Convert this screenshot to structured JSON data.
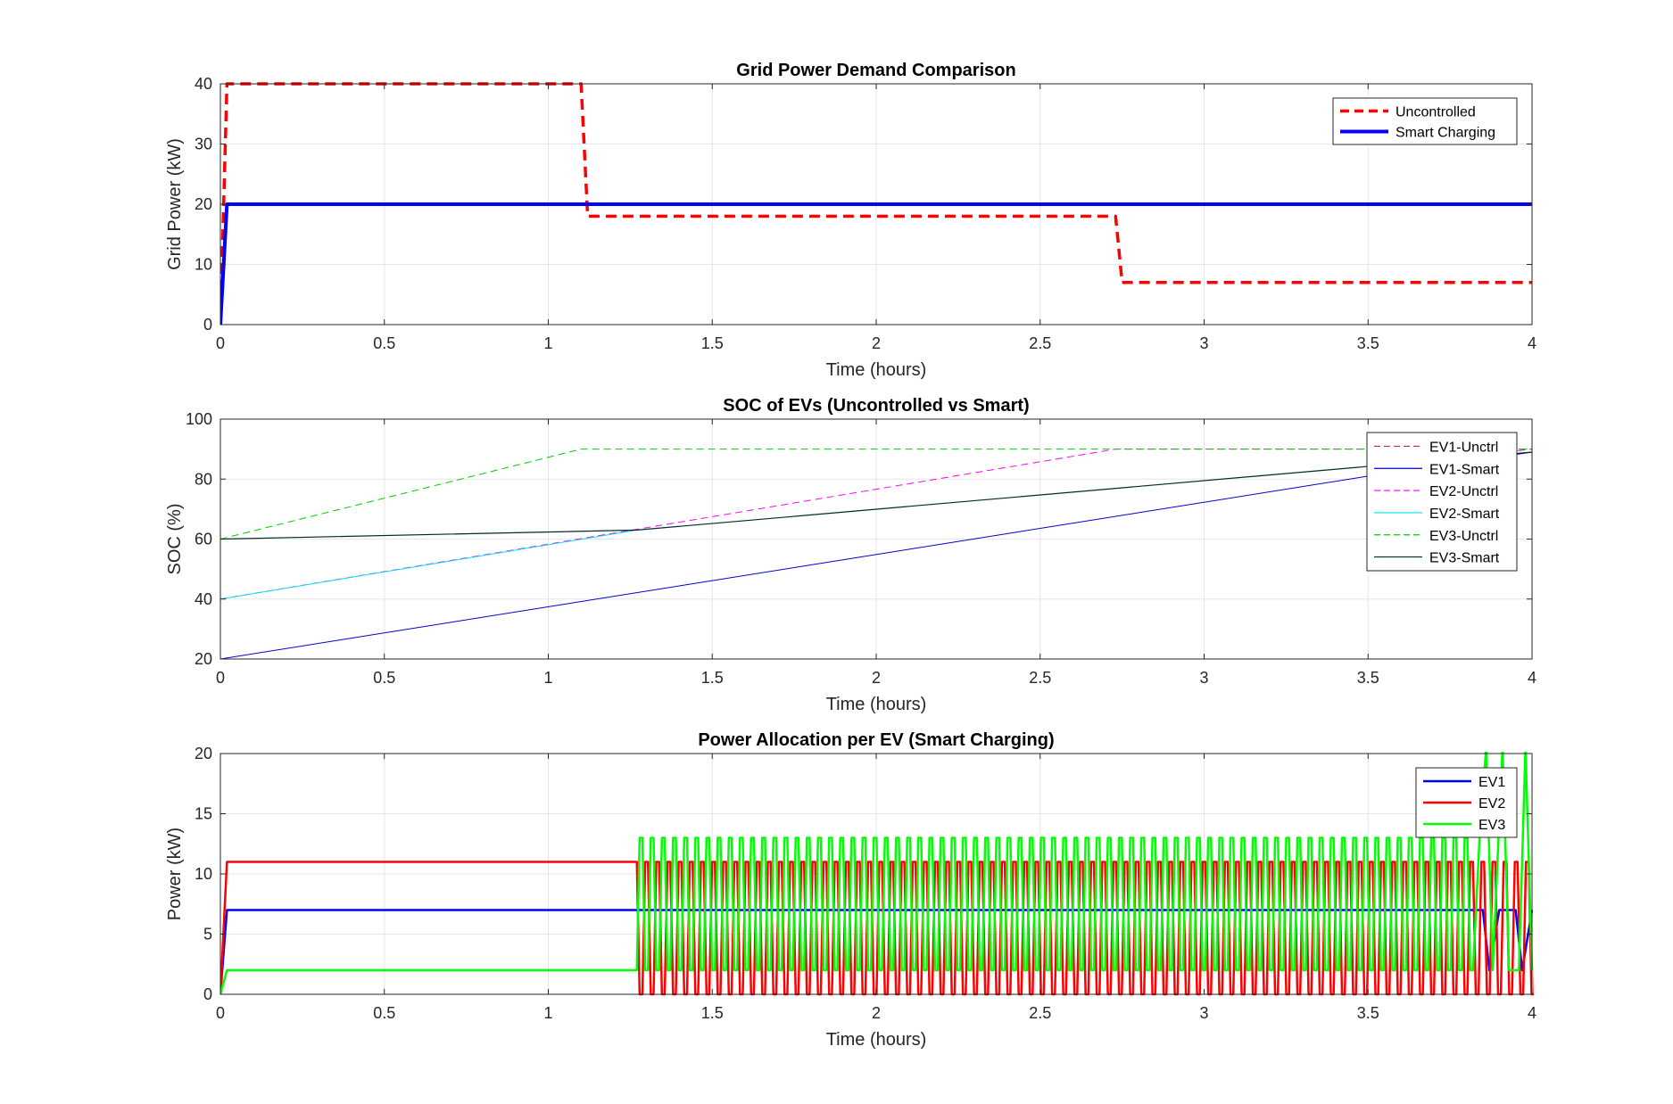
{
  "chart_data": [
    {
      "type": "line",
      "title": "Grid Power Demand Comparison",
      "xlabel": "Time (hours)",
      "ylabel": "Grid Power (kW)",
      "xlim": [
        0,
        4
      ],
      "ylim": [
        0,
        40
      ],
      "xticks": [
        0,
        0.5,
        1,
        1.5,
        2,
        2.5,
        3,
        3.5,
        4
      ],
      "yticks": [
        0,
        10,
        20,
        30,
        40
      ],
      "grid": true,
      "legend": "top-right",
      "series": [
        {
          "name": "Uncontrolled",
          "color": "#ff0000",
          "style": "dashed",
          "width": 3.5,
          "points": [
            [
              0,
              0
            ],
            [
              0.02,
              40
            ],
            [
              1.1,
              40
            ],
            [
              1.12,
              18
            ],
            [
              2.73,
              18
            ],
            [
              2.75,
              7
            ],
            [
              4,
              7
            ]
          ]
        },
        {
          "name": "Smart Charging",
          "color": "#0000ff",
          "style": "solid",
          "width": 4,
          "points": [
            [
              0,
              0
            ],
            [
              0.02,
              20
            ],
            [
              4,
              20
            ]
          ]
        }
      ]
    },
    {
      "type": "line",
      "title": "SOC of EVs (Uncontrolled vs Smart)",
      "xlabel": "Time (hours)",
      "ylabel": "SOC (%)",
      "xlim": [
        0,
        4
      ],
      "ylim": [
        20,
        100
      ],
      "xticks": [
        0,
        0.5,
        1,
        1.5,
        2,
        2.5,
        3,
        3.5,
        4
      ],
      "yticks": [
        20,
        40,
        60,
        80,
        100
      ],
      "grid": true,
      "legend": "top-right",
      "series": [
        {
          "name": "EV1-Unctrl",
          "color": "#b03060",
          "style": "dashed",
          "width": 1,
          "points": [
            [
              3.5,
              84
            ],
            [
              4,
              90
            ]
          ]
        },
        {
          "name": "EV1-Smart",
          "color": "#0000cc",
          "style": "solid",
          "width": 1,
          "points": [
            [
              0,
              20
            ],
            [
              3.5,
              81
            ],
            [
              4,
              89
            ]
          ]
        },
        {
          "name": "EV2-Unctrl",
          "color": "#ff00ff",
          "style": "dashed",
          "width": 1,
          "points": [
            [
              0,
              40
            ],
            [
              2.73,
              90
            ],
            [
              4,
              90
            ]
          ]
        },
        {
          "name": "EV2-Smart",
          "color": "#00e5e5",
          "style": "solid",
          "width": 1,
          "points": [
            [
              0,
              40
            ],
            [
              1.27,
              63
            ]
          ]
        },
        {
          "name": "EV3-Unctrl",
          "color": "#00cc00",
          "style": "dashed",
          "width": 1,
          "points": [
            [
              0,
              60
            ],
            [
              1.1,
              90
            ],
            [
              4,
              90
            ]
          ]
        },
        {
          "name": "EV3-Smart",
          "color": "#002b2b",
          "style": "solid",
          "width": 1.2,
          "points": [
            [
              0,
              60
            ],
            [
              1.27,
              63
            ],
            [
              4,
              89
            ]
          ]
        }
      ]
    },
    {
      "type": "line",
      "title": "Power Allocation per EV (Smart Charging)",
      "xlabel": "Time (hours)",
      "ylabel": "Power (kW)",
      "xlim": [
        0,
        4
      ],
      "ylim": [
        0,
        20
      ],
      "xticks": [
        0,
        0.5,
        1,
        1.5,
        2,
        2.5,
        3,
        3.5,
        4
      ],
      "yticks": [
        0,
        5,
        10,
        15,
        20
      ],
      "grid": true,
      "legend": "top-right",
      "oscillation_start": 1.27,
      "oscillation_period": 0.034,
      "series": [
        {
          "name": "EV1",
          "color": "#0000ff",
          "style": "solid",
          "width": 2.5,
          "points": [
            [
              0,
              0
            ],
            [
              0.02,
              7
            ],
            [
              3.85,
              7
            ],
            [
              3.87,
              2
            ],
            [
              3.9,
              7
            ],
            [
              3.95,
              7
            ],
            [
              3.97,
              2
            ],
            [
              4,
              7
            ]
          ]
        },
        {
          "name": "EV2",
          "color": "#ff0000",
          "style": "solid",
          "width": 2.5,
          "points": [
            [
              0,
              0
            ],
            [
              0.02,
              11
            ],
            [
              1.27,
              11
            ]
          ],
          "oscillates_between": [
            0,
            11
          ]
        },
        {
          "name": "EV3",
          "color": "#00ff00",
          "style": "solid",
          "width": 2.5,
          "points": [
            [
              0,
              0
            ],
            [
              0.02,
              2
            ],
            [
              1.27,
              2
            ]
          ],
          "oscillates_between": [
            2,
            13
          ]
        }
      ]
    }
  ]
}
